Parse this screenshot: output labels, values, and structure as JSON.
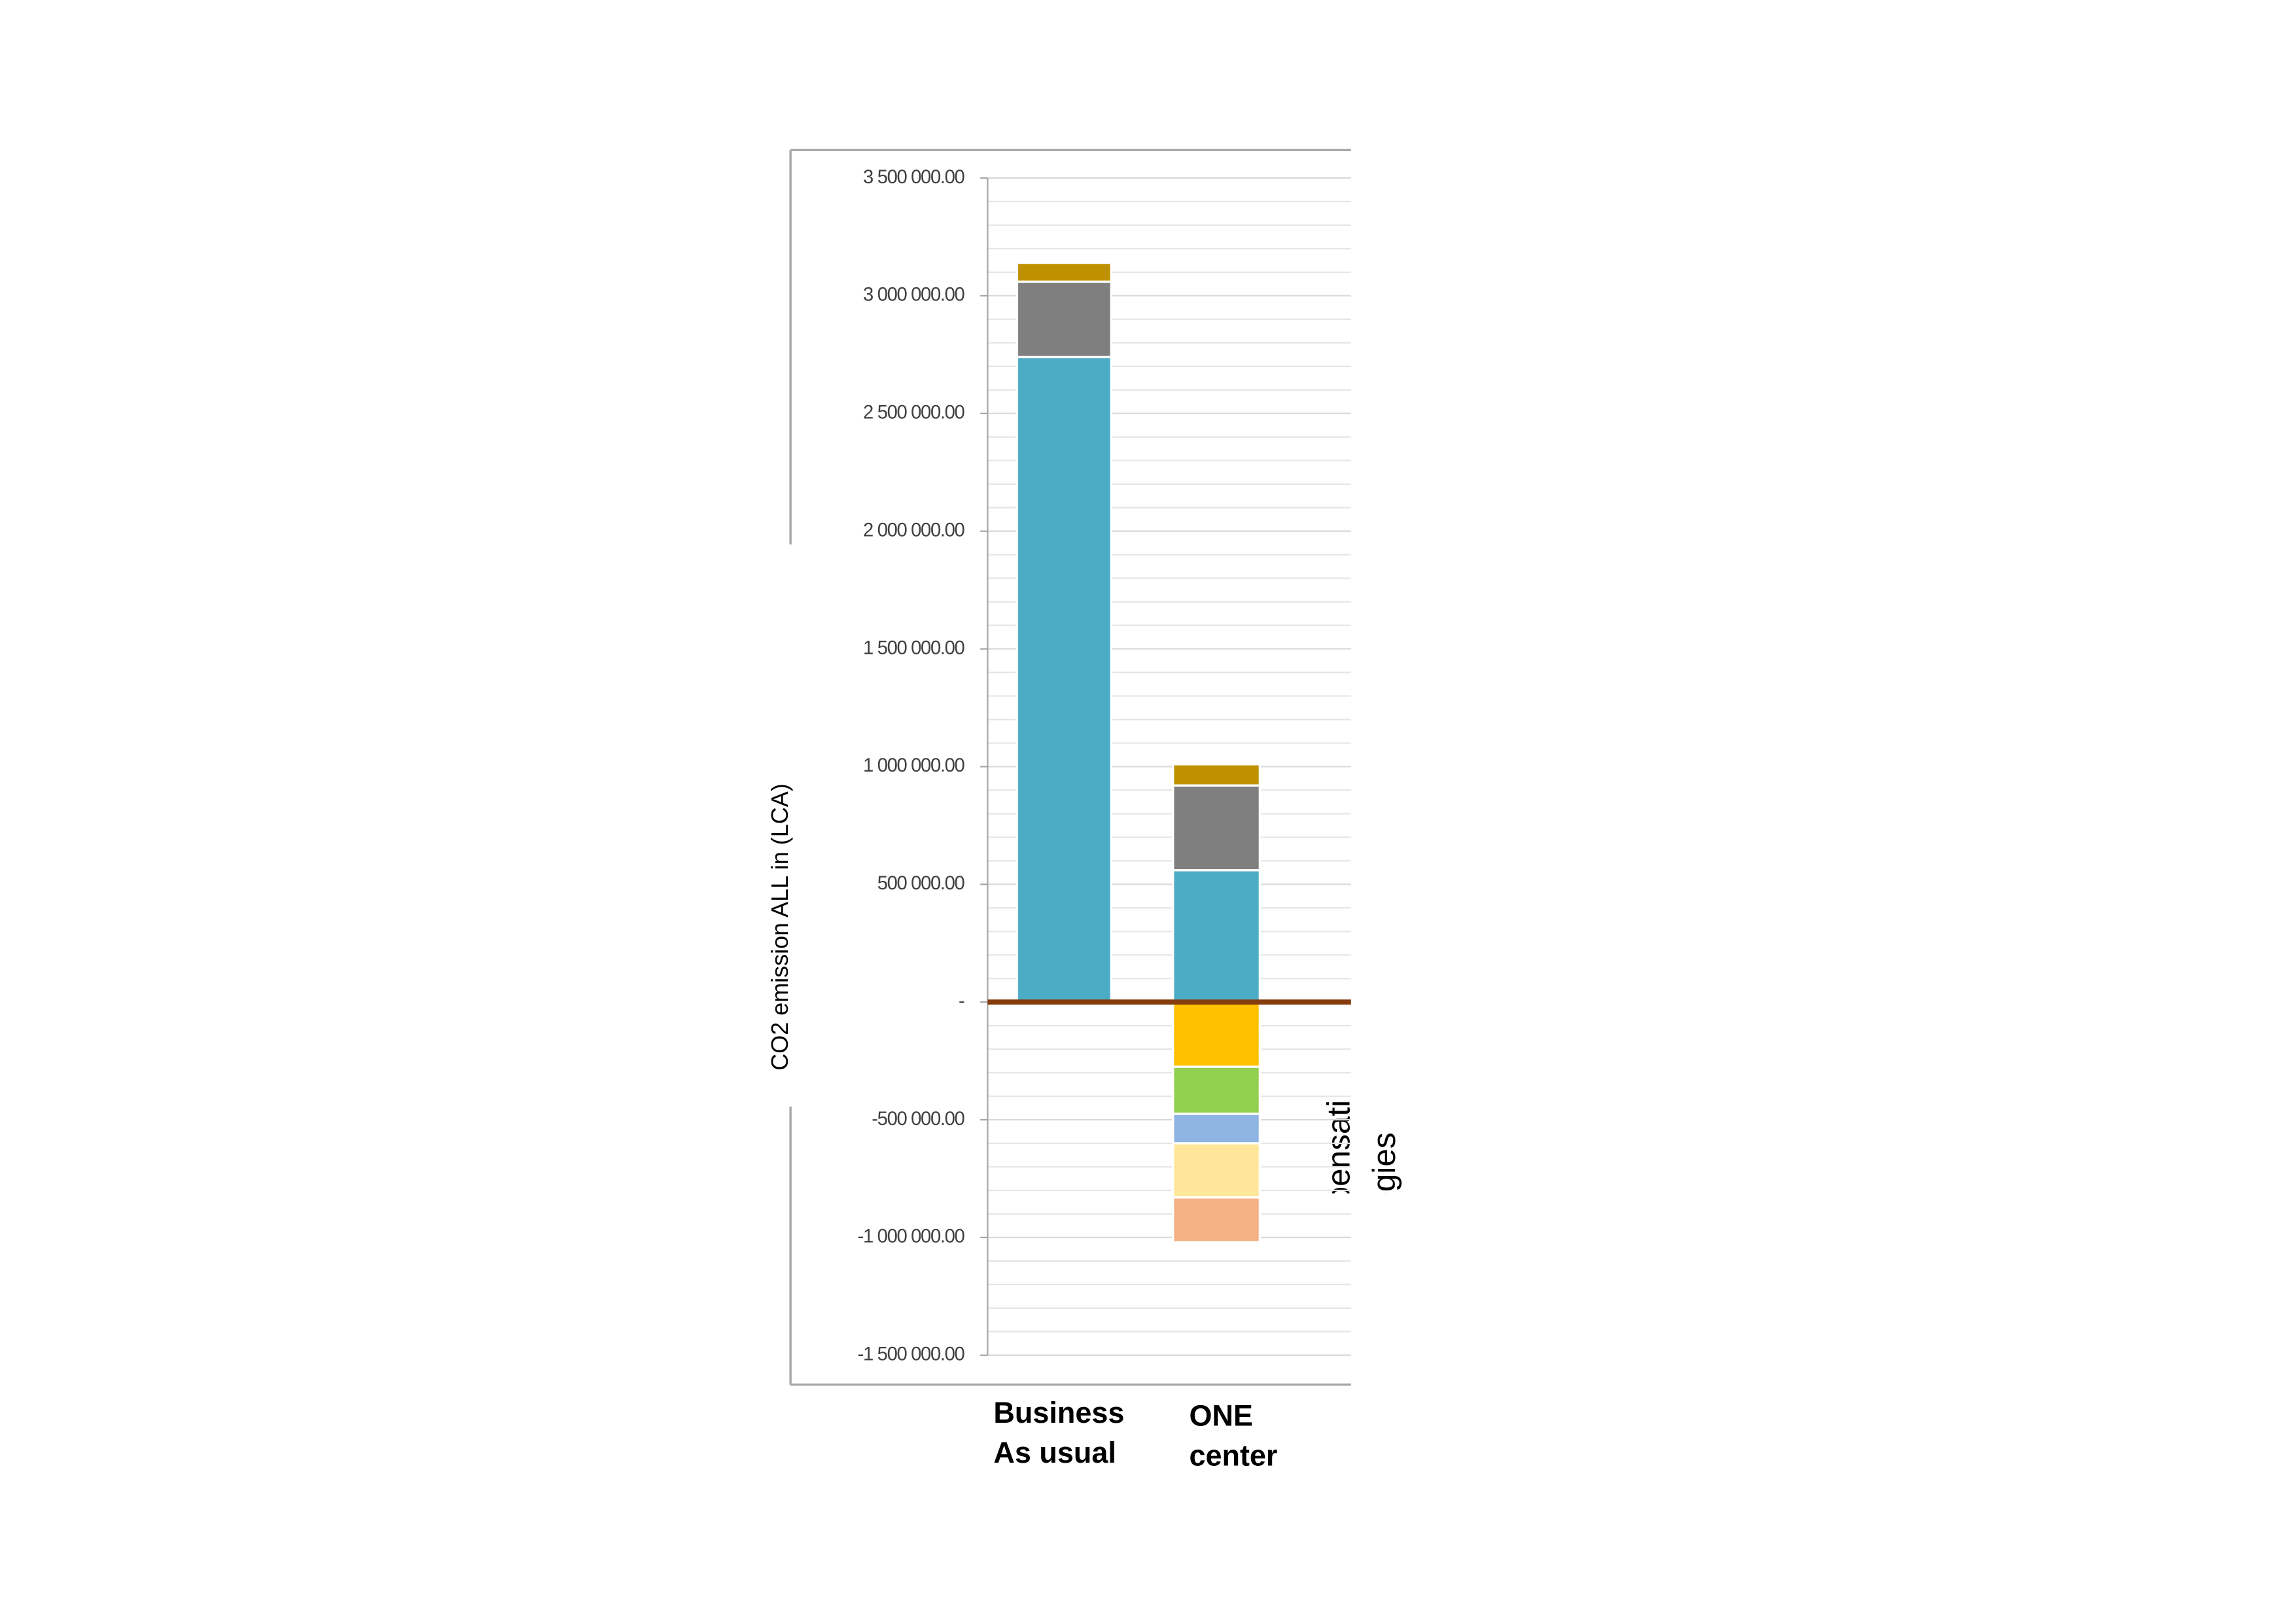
{
  "chart_data": {
    "type": "bar",
    "stacked": true,
    "y_label": "CO2 emission  ALL in  (LCA)",
    "annotation": "Compensation strategies",
    "categories": [
      "Business As usual",
      "ONE center"
    ],
    "series": [
      {
        "color": "#4bacc6",
        "values": [
          2740000,
          560000
        ]
      },
      {
        "color": "#7f7f7f",
        "values": [
          320000,
          360000
        ]
      },
      {
        "color": "#bf9000",
        "values": [
          80000,
          90000
        ]
      },
      {
        "color": "#ffc000",
        "values": [
          null,
          -275000
        ]
      },
      {
        "color": "#92d050",
        "values": [
          null,
          -200000
        ]
      },
      {
        "color": "#8eb4e3",
        "values": [
          null,
          -125000
        ]
      },
      {
        "color": "#ffe699",
        "values": [
          null,
          -230000
        ]
      },
      {
        "color": "#f4b183",
        "values": [
          null,
          -190000
        ]
      }
    ],
    "ylim": [
      -1500000,
      3500000
    ],
    "yticks": [
      {
        "value": -1500000,
        "label": "-1 500 000.00"
      },
      {
        "value": -1000000,
        "label": "-1 000 000.00"
      },
      {
        "value": -500000,
        "label": "-500 000.00"
      },
      {
        "value": 0,
        "label": "-"
      },
      {
        "value": 500000,
        "label": "500 000.00"
      },
      {
        "value": 1000000,
        "label": "1 000 000.00"
      },
      {
        "value": 1500000,
        "label": "1 500 000.00"
      },
      {
        "value": 2000000,
        "label": "2 000 000.00"
      },
      {
        "value": 2500000,
        "label": "2 500 000.00"
      },
      {
        "value": 3000000,
        "label": "3 000 000.00"
      },
      {
        "value": 3500000,
        "label": "3 500 000.00"
      }
    ],
    "grid": true,
    "zero_line_color": "#843c0c"
  }
}
